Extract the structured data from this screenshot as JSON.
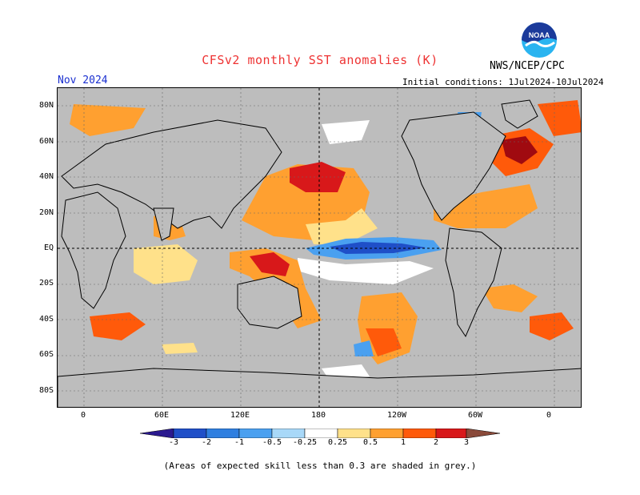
{
  "title": "CFSv2 monthly SST anomalies (K)",
  "forecast_month": "Nov 2024",
  "agency": "NWS/NCEP/CPC",
  "logo_text": "NOAA",
  "initial_conditions": "Initial conditions: 1Jul2024-10Jul2024",
  "footnote": "(Areas of expected skill less than 0.3 are shaded in grey.)",
  "lat_labels": [
    "80N",
    "60N",
    "40N",
    "20N",
    "EQ",
    "20S",
    "40S",
    "60S",
    "80S"
  ],
  "lon_labels": [
    "0",
    "60E",
    "120E",
    "180",
    "120W",
    "60W",
    "0"
  ],
  "colorbar": {
    "labels": [
      "-3",
      "-2",
      "-1",
      "-0.5",
      "-0.25",
      "0.25",
      "0.5",
      "1",
      "2",
      "3"
    ],
    "colors": [
      "#2b1a8f",
      "#1f4fc8",
      "#2f7fe0",
      "#4aa0f0",
      "#a8d8f8",
      "#ffffff",
      "#ffe18a",
      "#ffa030",
      "#ff5a0a",
      "#d8181a",
      "#a00a10",
      "#8a4a3a"
    ]
  },
  "colors": {
    "title": "#ee3333",
    "date": "#1a2fd0",
    "land_grey": "#bdbdbd",
    "map_border": "#000000"
  }
}
